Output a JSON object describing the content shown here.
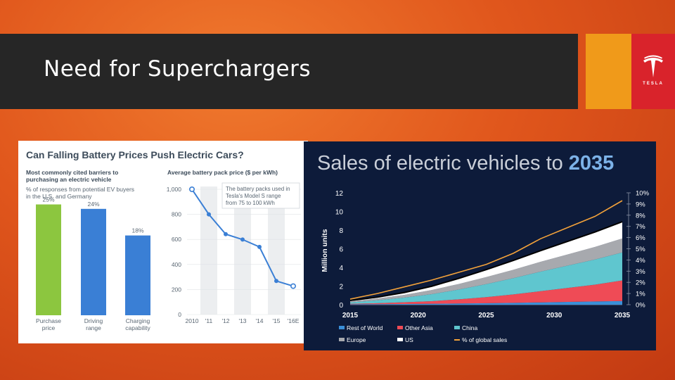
{
  "slide": {
    "title": "Need for Superchargers",
    "brand": "TESLA",
    "colors": {
      "accent_orange": "#f09a1a",
      "accent_red": "#d9232b",
      "title_bar": "#262626"
    }
  },
  "chart_data": [
    {
      "type": "bar",
      "title": "Can Falling Battery Prices Push Electric Cars?",
      "subtitle_bold": "Most commonly cited barriers to purchasing an electric vehicle",
      "subtitle_line1": "Most commonly cited barriers to",
      "subtitle_line2": "purchasing an electric vehicle",
      "note_line1": "% of responses from potential EV buyers",
      "note_line2": "in the U.S. and Germany",
      "categories": [
        [
          "Purchase",
          "price"
        ],
        [
          "Driving",
          "range"
        ],
        [
          "Charging",
          "capability"
        ]
      ],
      "values": [
        25,
        24,
        18
      ],
      "value_labels": [
        "25%",
        "24%",
        "18%"
      ],
      "colors": [
        "#8cc63f",
        "#3a7fd5",
        "#3a7fd5"
      ]
    },
    {
      "type": "line",
      "title": "Average battery pack price ($ per kWh)",
      "x": [
        "2010",
        "'11",
        "'12",
        "'13",
        "'14",
        "'15",
        "'16E"
      ],
      "y": [
        1000,
        800,
        642,
        599,
        540,
        268,
        227
      ],
      "ylim": [
        0,
        1000
      ],
      "yticks": [
        "1,000",
        "800",
        "600",
        "400",
        "200",
        "0"
      ],
      "yticks_values": [
        1000,
        800,
        600,
        400,
        200,
        0
      ],
      "annotation_line1": "The battery packs used in",
      "annotation_line2": "Tesla's Model S range",
      "annotation_line3": "from 75 to 100 kWh",
      "color": "#3a7fd5"
    },
    {
      "type": "area",
      "title_light": "Sales of electric vehicles to",
      "title_bold": "2035",
      "ylabel": "Million units",
      "x": [
        2015,
        2017,
        2019,
        2021,
        2023,
        2025,
        2027,
        2029,
        2031,
        2033,
        2035
      ],
      "xticks": [
        "2015",
        "2020",
        "2025",
        "2030",
        "2035"
      ],
      "ylim": [
        0,
        12
      ],
      "yticks": [
        "0",
        "2",
        "4",
        "6",
        "8",
        "10",
        "12"
      ],
      "y2ticks": [
        "0%",
        "1%",
        "2%",
        "3%",
        "4%",
        "5%",
        "6%",
        "7%",
        "8%",
        "9%",
        "10%"
      ],
      "series": [
        {
          "name": "Rest of World",
          "color": "#3a8fd8",
          "values": [
            0.05,
            0.06,
            0.08,
            0.1,
            0.13,
            0.16,
            0.2,
            0.25,
            0.3,
            0.35,
            0.4
          ]
        },
        {
          "name": "Other Asia",
          "color": "#ef4b56",
          "values": [
            0.05,
            0.1,
            0.18,
            0.28,
            0.45,
            0.65,
            0.9,
            1.2,
            1.5,
            1.8,
            2.2
          ]
        },
        {
          "name": "China",
          "color": "#5fc6cf",
          "values": [
            0.15,
            0.3,
            0.5,
            0.75,
            1.05,
            1.4,
            1.75,
            2.1,
            2.4,
            2.7,
            3.0
          ]
        },
        {
          "name": "Europe",
          "color": "#a7a9ae",
          "values": [
            0.1,
            0.2,
            0.3,
            0.45,
            0.6,
            0.75,
            0.9,
            1.05,
            1.2,
            1.35,
            1.5
          ]
        },
        {
          "name": "US",
          "color": "#ffffff",
          "values": [
            0.1,
            0.15,
            0.25,
            0.4,
            0.6,
            0.8,
            1.0,
            1.2,
            1.4,
            1.6,
            1.8
          ]
        },
        {
          "name": "% of global sales",
          "color": "#f3a23a",
          "values": [
            0.5,
            1.0,
            1.6,
            2.2,
            2.9,
            3.6,
            4.6,
            5.9,
            6.9,
            7.9,
            9.3
          ]
        }
      ],
      "legend": [
        "Rest of World",
        "Other Asia",
        "China",
        "Europe",
        "US",
        "% of global sales"
      ],
      "legend_placement": "bottom"
    }
  ]
}
